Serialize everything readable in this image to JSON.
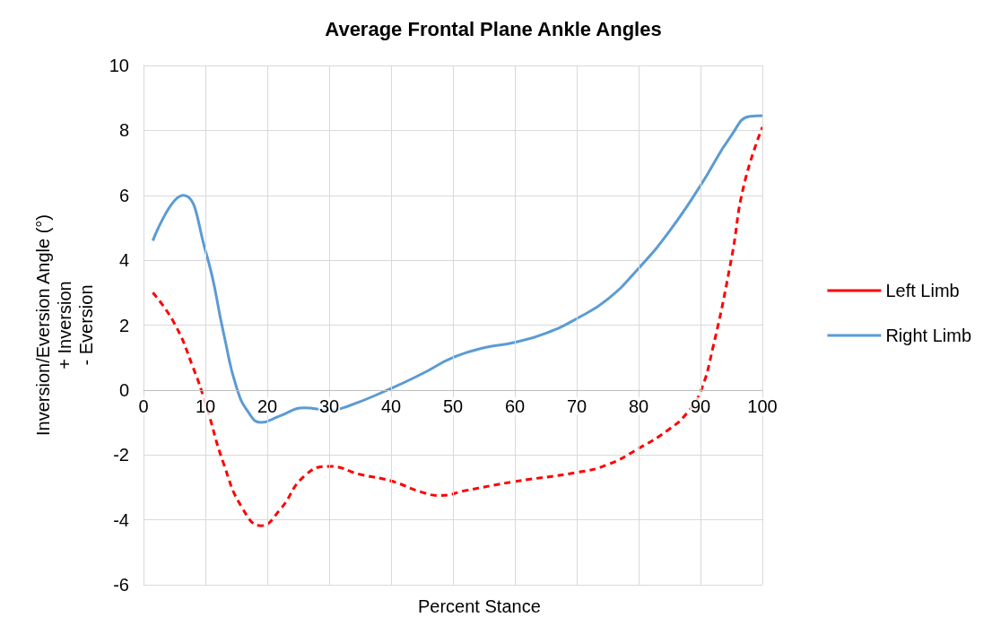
{
  "chart_data": {
    "type": "line",
    "title": "Average Frontal Plane Ankle Angles",
    "xlabel": "Percent Stance",
    "ylabel": "Inversion/Eversion Angle (°)\n+ Inversion\n- Eversion",
    "xlim": [
      0,
      100
    ],
    "xticks": [
      0,
      10,
      20,
      30,
      40,
      50,
      60,
      70,
      80,
      90,
      100
    ],
    "ylim": [
      -6,
      10
    ],
    "yticks": [
      -6,
      -4,
      -2,
      0,
      2,
      4,
      6,
      8,
      10
    ],
    "grid": true,
    "legend": "right",
    "marker": "none",
    "series": [
      {
        "name": "Left Limb",
        "color": "#ff0000",
        "line_style": "dashed",
        "x": [
          1.5,
          5,
          8,
          10,
          13,
          16,
          19,
          22,
          26,
          30,
          35,
          40,
          45,
          48,
          52,
          60,
          70,
          75,
          80,
          85,
          88,
          90,
          92,
          95,
          97,
          100
        ],
        "values": [
          3.0,
          2.05,
          0.7,
          -0.4,
          -2.3,
          -3.65,
          -4.18,
          -3.7,
          -2.65,
          -2.35,
          -2.6,
          -2.8,
          -3.15,
          -3.25,
          -3.1,
          -2.82,
          -2.54,
          -2.3,
          -1.8,
          -1.2,
          -0.67,
          -0.05,
          1.3,
          4.05,
          6.3,
          8.1
        ]
      },
      {
        "name": "Right Limb",
        "color": "#5b9bd5",
        "line_style": "solid",
        "x": [
          1.5,
          6.4,
          10,
          13,
          15,
          17,
          19,
          22,
          26,
          30,
          33,
          40,
          45,
          50,
          55,
          60,
          65,
          70,
          75,
          80,
          85,
          90,
          95,
          98,
          100
        ],
        "values": [
          4.6,
          6.0,
          4.3,
          1.7,
          0.1,
          -0.7,
          -1.0,
          -0.8,
          -0.55,
          -0.62,
          -0.5,
          0.05,
          0.5,
          1.0,
          1.3,
          1.47,
          1.75,
          2.2,
          2.8,
          3.75,
          4.9,
          6.3,
          7.85,
          8.43,
          8.45
        ]
      }
    ]
  }
}
